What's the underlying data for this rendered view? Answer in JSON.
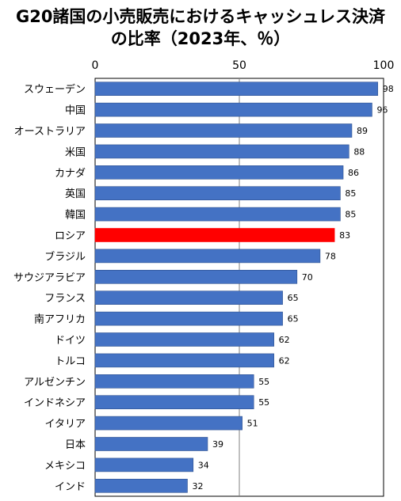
{
  "chart_data": {
    "type": "bar",
    "orientation": "horizontal",
    "title": "G20諸国の小売販売におけるキャッシュレス決済の比率（2023年、％）",
    "title_lines": [
      "G20諸国の小売販売におけるキャッシュレス決済",
      "の比率（2023年、％）"
    ],
    "categories": [
      "スウェーデン",
      "中国",
      "オーストラリア",
      "米国",
      "カナダ",
      "英国",
      "韓国",
      "ロシア",
      "ブラジル",
      "サウジアラビア",
      "フランス",
      "南アフリカ",
      "ドイツ",
      "トルコ",
      "アルゼンチン",
      "インドネシア",
      "イタリア",
      "日本",
      "メキシコ",
      "インド"
    ],
    "values": [
      98,
      96,
      89,
      88,
      86,
      85,
      85,
      83,
      78,
      70,
      65,
      65,
      62,
      62,
      55,
      55,
      51,
      39,
      34,
      32
    ],
    "value_labels": [
      "98",
      "96",
      "89",
      "88",
      "86",
      "85",
      "85",
      "83",
      "78",
      "70",
      "65",
      "65",
      "62",
      "62",
      "55",
      "55",
      "51",
      "39",
      "34",
      "32"
    ],
    "x_ticks": [
      "0",
      "50",
      "100"
    ],
    "xlim": [
      0,
      100
    ],
    "highlight_category": "ロシア",
    "colors": {
      "bar": "#4472c4",
      "highlight": "#ff0000",
      "bar_border": "#2f528f",
      "grid": "#808080"
    },
    "grid": true,
    "legend": "none"
  }
}
